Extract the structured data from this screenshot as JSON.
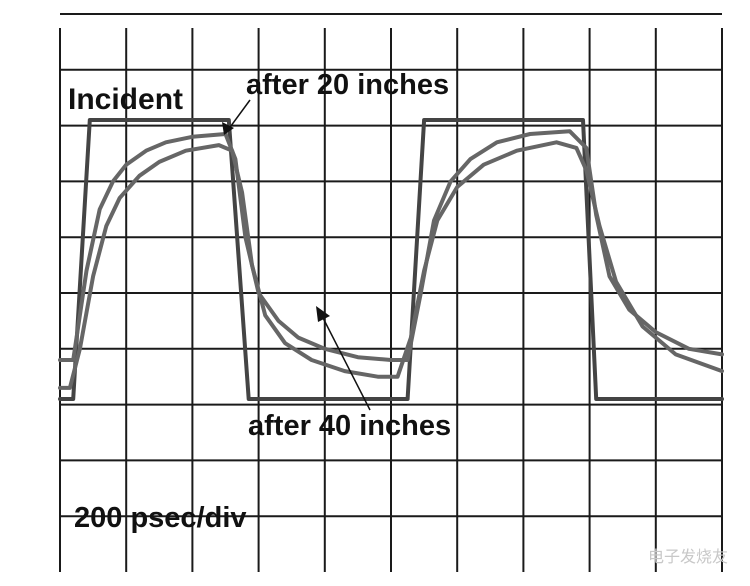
{
  "chart_data": {
    "type": "line",
    "title": "",
    "xlabel": "",
    "ylabel": "",
    "x_divisions": 10,
    "y_divisions": 10,
    "grid": true,
    "xlim": [
      0,
      10
    ],
    "ylim": [
      0,
      10
    ],
    "series": [
      {
        "name": "Incident",
        "color": "#444444",
        "x": [
          0,
          0.2,
          0.45,
          2.55,
          2.85,
          3.1,
          5.25,
          5.5,
          5.75,
          7.9,
          8.1,
          8.4,
          10
        ],
        "y": [
          3.1,
          3.1,
          8.1,
          8.1,
          3.1,
          3.1,
          3.1,
          8.1,
          8.1,
          8.1,
          3.1,
          3.1,
          3.1
        ]
      },
      {
        "name": "after 20 inches",
        "color": "#666666",
        "x": [
          0,
          0.2,
          0.4,
          0.6,
          0.8,
          1.0,
          1.3,
          1.6,
          2.0,
          2.5,
          2.65,
          2.8,
          3.0,
          3.3,
          3.6,
          4.0,
          4.5,
          5.0,
          5.25,
          5.45,
          5.65,
          5.9,
          6.2,
          6.6,
          7.1,
          7.7,
          7.95,
          8.1,
          8.3,
          8.6,
          9.0,
          9.5,
          10
        ],
        "y": [
          3.8,
          3.8,
          5.4,
          6.5,
          7.0,
          7.3,
          7.55,
          7.7,
          7.8,
          7.85,
          7.4,
          6.0,
          5.0,
          4.5,
          4.2,
          4.0,
          3.85,
          3.8,
          3.8,
          5.0,
          6.3,
          7.0,
          7.4,
          7.7,
          7.85,
          7.9,
          7.6,
          6.4,
          5.3,
          4.7,
          4.3,
          4.0,
          3.9
        ]
      },
      {
        "name": "after 40 inches",
        "color": "#666666",
        "x": [
          0,
          0.15,
          0.3,
          0.5,
          0.7,
          0.9,
          1.2,
          1.5,
          1.9,
          2.4,
          2.6,
          2.75,
          2.9,
          3.1,
          3.4,
          3.8,
          4.3,
          4.8,
          5.1,
          5.3,
          5.5,
          5.7,
          6.0,
          6.4,
          6.9,
          7.5,
          7.8,
          7.95,
          8.15,
          8.4,
          8.8,
          9.3,
          10
        ],
        "y": [
          3.3,
          3.3,
          4.0,
          5.3,
          6.2,
          6.7,
          7.1,
          7.35,
          7.55,
          7.65,
          7.55,
          6.8,
          5.5,
          4.6,
          4.1,
          3.8,
          3.6,
          3.5,
          3.5,
          4.2,
          5.4,
          6.3,
          6.9,
          7.3,
          7.55,
          7.7,
          7.6,
          7.2,
          6.2,
          5.2,
          4.4,
          3.9,
          3.6
        ]
      }
    ],
    "annotations": {
      "incident": "Incident",
      "after20": "after 20 inches",
      "after40": "after 40 inches",
      "timebase": "200 psec/div"
    }
  },
  "watermark": "电子发烧友",
  "colors": {
    "grid": "#1a1a1a",
    "trace_incident": "#444444",
    "trace_filtered": "#666666",
    "text": "#111111"
  }
}
